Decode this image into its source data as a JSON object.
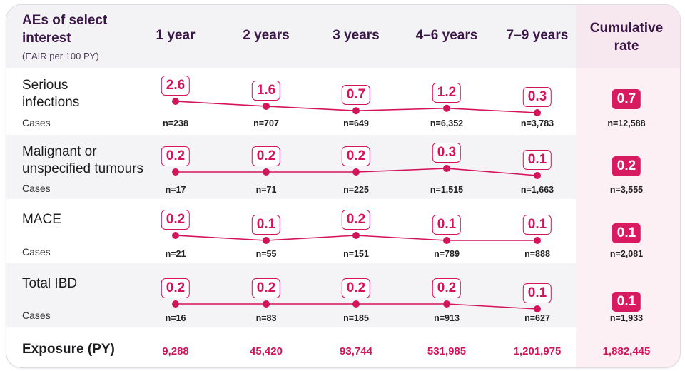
{
  "chart_data": {
    "type": "line",
    "header": {
      "title_line1": "AEs of select",
      "title_line2": "interest",
      "subtitle": "(EAIR per 100 PY)",
      "cumulative_line1": "Cumulative",
      "cumulative_line2": "rate"
    },
    "categories": [
      "1 year",
      "2 years",
      "3 years",
      "4–6 years",
      "7–9 years"
    ],
    "cases_label": "Cases",
    "series": [
      {
        "name": "Serious infections",
        "label_lines": [
          "Serious",
          "infections"
        ],
        "values": [
          2.6,
          1.6,
          0.7,
          1.2,
          0.3
        ],
        "value_labels": [
          "2.6",
          "1.6",
          "0.7",
          "1.2",
          "0.3"
        ],
        "cases": [
          "n=238",
          "n=707",
          "n=649",
          "n=6,352",
          "n=3,783"
        ],
        "cumulative": "0.7",
        "cumulative_cases": "n=12,588"
      },
      {
        "name": "Malignant or unspecified tumours",
        "label_lines": [
          "Malignant or",
          "unspecified tumours"
        ],
        "values": [
          0.2,
          0.2,
          0.2,
          0.3,
          0.1
        ],
        "value_labels": [
          "0.2",
          "0.2",
          "0.2",
          "0.3",
          "0.1"
        ],
        "cases": [
          "n=17",
          "n=71",
          "n=225",
          "n=1,515",
          "n=1,663"
        ],
        "cumulative": "0.2",
        "cumulative_cases": "n=3,555"
      },
      {
        "name": "MACE",
        "label_lines": [
          "MACE"
        ],
        "values": [
          0.2,
          0.1,
          0.2,
          0.1,
          0.1
        ],
        "value_labels": [
          "0.2",
          "0.1",
          "0.2",
          "0.1",
          "0.1"
        ],
        "cases": [
          "n=21",
          "n=55",
          "n=151",
          "n=789",
          "n=888"
        ],
        "cumulative": "0.1",
        "cumulative_cases": "n=2,081"
      },
      {
        "name": "Total IBD",
        "label_lines": [
          "Total IBD"
        ],
        "values": [
          0.2,
          0.2,
          0.2,
          0.2,
          0.1
        ],
        "value_labels": [
          "0.2",
          "0.2",
          "0.2",
          "0.2",
          "0.1"
        ],
        "cases": [
          "n=16",
          "n=83",
          "n=185",
          "n=913",
          "n=627"
        ],
        "cumulative": "0.1",
        "cumulative_cases": "n=1,933"
      }
    ],
    "exposure": {
      "label": "Exposure (PY)",
      "values": [
        "9,288",
        "45,420",
        "93,744",
        "531,985",
        "1,201,975"
      ],
      "cumulative": "1,882,445"
    },
    "colors": {
      "accent": "#d4145a",
      "cumulative_fill": "#d81b60",
      "heading": "#3a1747",
      "header_bg": "#f3f3f6",
      "alt_row_bg": "#f4f4f6",
      "cumulative_bg": "#fcf0f4"
    }
  }
}
